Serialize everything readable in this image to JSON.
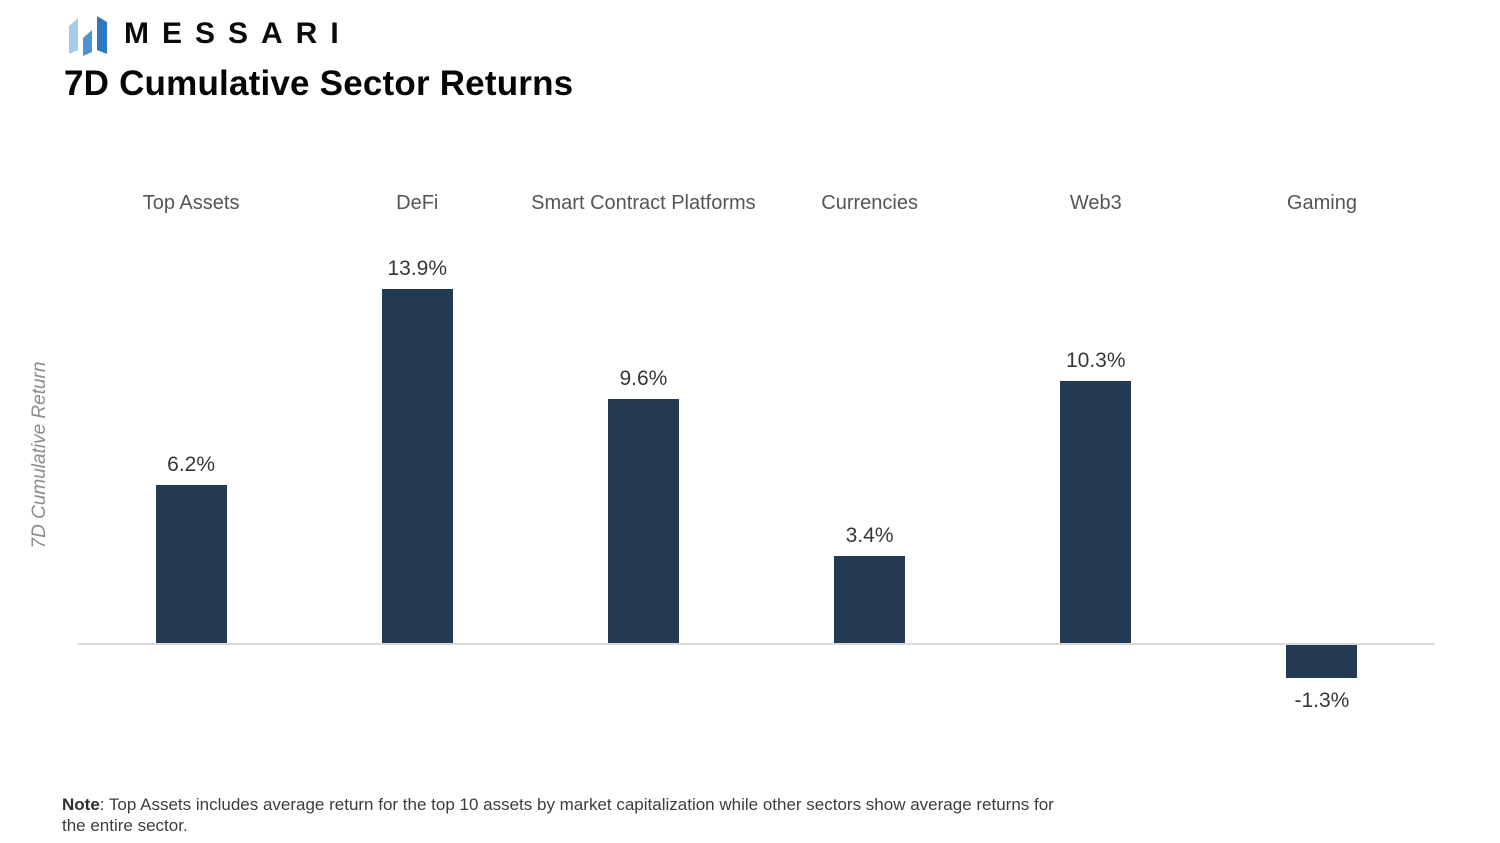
{
  "header": {
    "brand": "MESSARI",
    "title": "7D Cumulative Sector Returns"
  },
  "logo_colors": {
    "left_bar": "#a6cbe9",
    "middle_bar": "#4d92d3",
    "right_bar": "#2f79c2"
  },
  "chart_data": {
    "type": "bar",
    "categories": [
      "Top Assets",
      "DeFi",
      "Smart Contract Platforms",
      "Currencies",
      "Web3",
      "Gaming"
    ],
    "values": [
      6.2,
      13.9,
      9.6,
      3.4,
      10.3,
      -1.3
    ],
    "value_labels": [
      "6.2%",
      "13.9%",
      "9.6%",
      "3.4%",
      "10.3%",
      "-1.3%"
    ],
    "title": "7D Cumulative Sector Returns",
    "xlabel": "",
    "ylabel": "7D Cumulative Return",
    "ylim": [
      -2,
      15
    ],
    "bar_color": "#243a52",
    "axis_line_color": "#d9d9d9",
    "grid": false,
    "legend": false,
    "value_labels_position": "outside-end"
  },
  "note": {
    "label": "Note",
    "text": ": Top Assets includes average return for the top 10 assets by market capitalization while other sectors show average returns for the entire sector."
  }
}
